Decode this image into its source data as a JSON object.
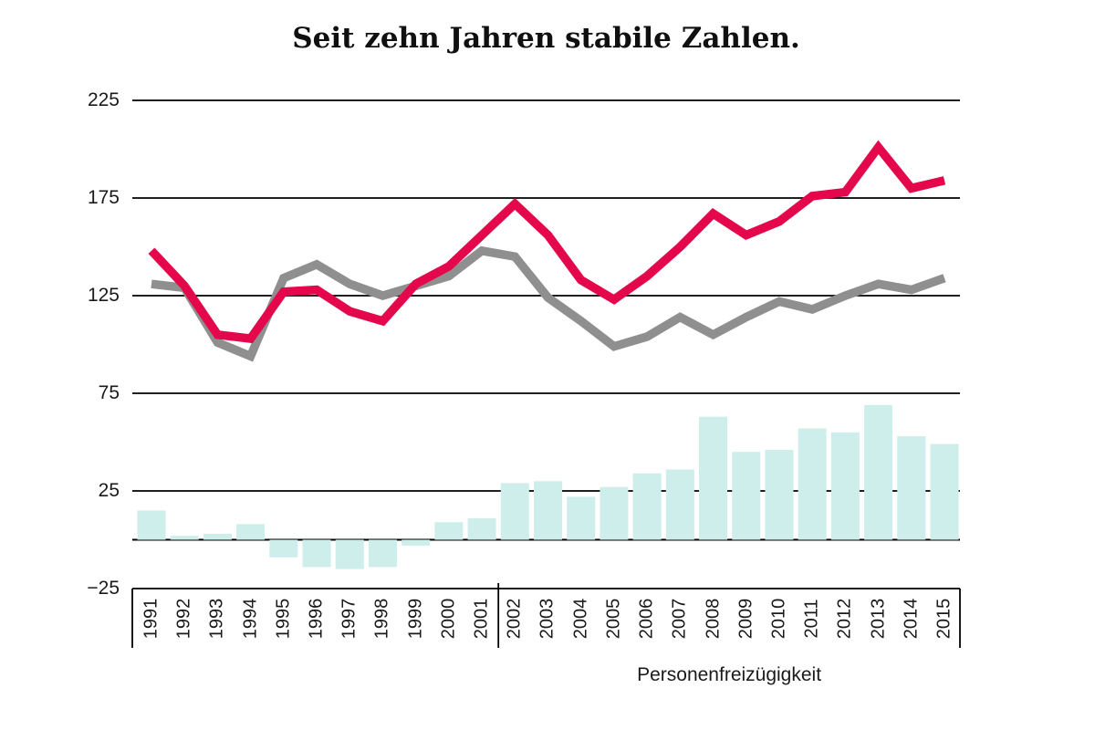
{
  "chart_data": {
    "type": "combo",
    "title": "Seit zehn Jahren stabile Zahlen.",
    "section_label": "Personenfreizügigkeit",
    "section_label_applies_to": [
      "2002",
      "2015"
    ],
    "categories": [
      "1991",
      "1992",
      "1993",
      "1994",
      "1995",
      "1996",
      "1997",
      "1998",
      "1999",
      "2000",
      "2001",
      "2002",
      "2003",
      "2004",
      "2005",
      "2006",
      "2007",
      "2008",
      "2009",
      "2010",
      "2011",
      "2012",
      "2013",
      "2014",
      "2015"
    ],
    "series": [
      {
        "id": "bars",
        "type": "bar",
        "color": "#cdeeea",
        "values": [
          15,
          2,
          3,
          8,
          -9,
          -14,
          -15,
          -14,
          -3,
          9,
          11,
          29,
          30,
          22,
          27,
          34,
          36,
          63,
          45,
          46,
          57,
          55,
          69,
          53,
          49
        ]
      },
      {
        "id": "gray-line",
        "type": "line",
        "color": "#8f8f8f",
        "values": [
          131,
          129,
          101,
          94,
          134,
          141,
          131,
          125,
          130,
          135,
          148,
          145,
          124,
          112,
          99,
          104,
          114,
          105,
          114,
          122,
          118,
          125,
          131,
          128,
          134
        ]
      },
      {
        "id": "red-line",
        "type": "line",
        "color": "#e4074c",
        "values": [
          148,
          130,
          105,
          103,
          127,
          128,
          117,
          112,
          131,
          140,
          156,
          172,
          156,
          133,
          123,
          135,
          150,
          167,
          156,
          163,
          176,
          178,
          201,
          180,
          184
        ]
      }
    ],
    "y_axis": {
      "ticks": [
        225,
        175,
        125,
        75,
        25,
        -25
      ],
      "tick_labels": [
        "225",
        "175",
        "125",
        "75",
        "25",
        "−25"
      ],
      "range": [
        -25,
        225
      ],
      "gridlines": true,
      "zero_baseline": true
    },
    "x_axis": {
      "divider_after": "2001",
      "label_rotation_deg": -90
    },
    "legend": "none",
    "axis_color": "#000000"
  }
}
